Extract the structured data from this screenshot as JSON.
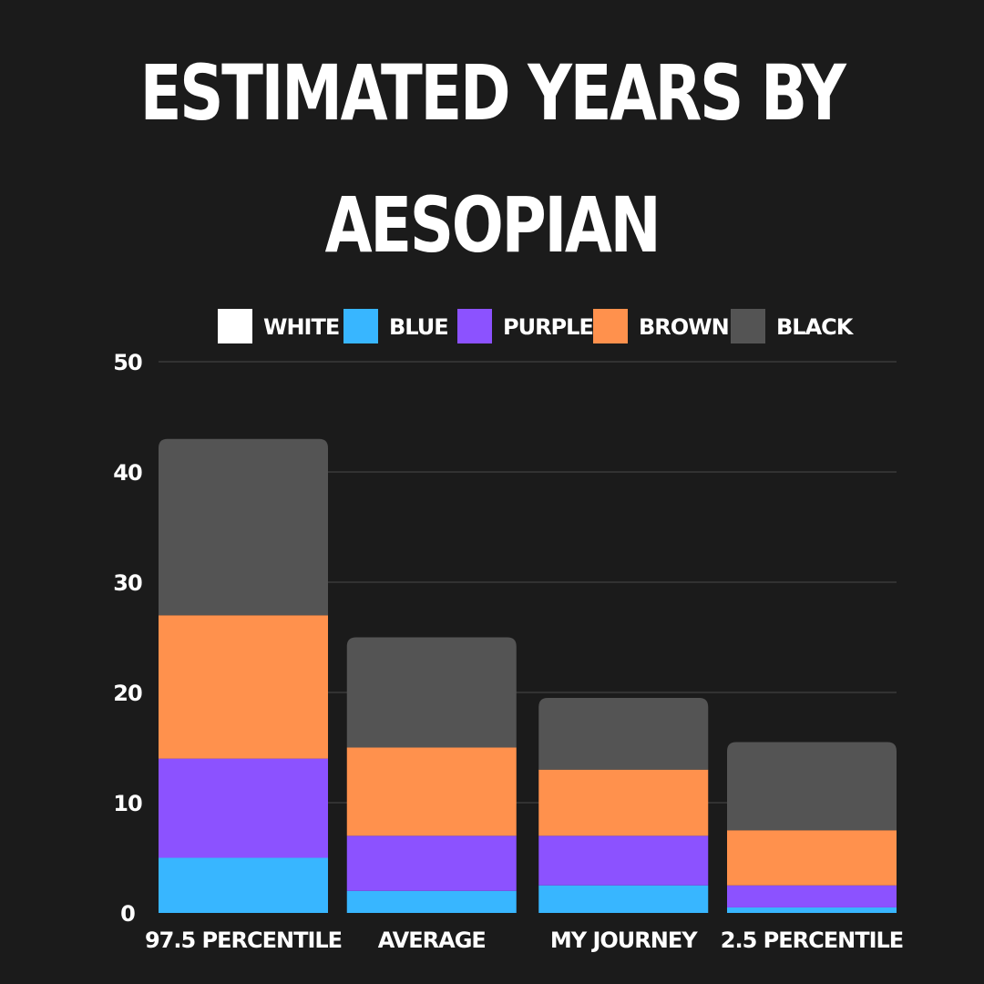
{
  "chart_data": {
    "type": "bar",
    "stacked": true,
    "title_lines": [
      "ESTIMATED YEARS BY",
      "AESOPIAN"
    ],
    "xlabel": "",
    "ylabel": "",
    "ylim": [
      0,
      50
    ],
    "yticks": [
      0,
      10,
      20,
      30,
      40,
      50
    ],
    "grid": true,
    "legend_position": "top",
    "categories": [
      "97.5 PERCENTILE",
      "AVERAGE",
      "MY JOURNEY",
      "2.5 PERCENTILE"
    ],
    "series": [
      {
        "name": "WHITE",
        "color": "#ffffff",
        "values": [
          0,
          0,
          0,
          0
        ]
      },
      {
        "name": "BLUE",
        "color": "#38b6ff",
        "values": [
          5,
          2,
          2.5,
          0.5
        ]
      },
      {
        "name": "PURPLE",
        "color": "#8c52ff",
        "values": [
          9,
          5,
          4.5,
          2
        ]
      },
      {
        "name": "BROWN",
        "color": "#ff914d",
        "values": [
          13,
          8,
          6,
          5
        ]
      },
      {
        "name": "BLACK",
        "color": "#545454",
        "values": [
          16,
          10,
          6.5,
          8
        ]
      }
    ]
  },
  "colors": {
    "background": "#1b1b1b",
    "gridline": "#4a4a4a",
    "text": "#ffffff"
  }
}
